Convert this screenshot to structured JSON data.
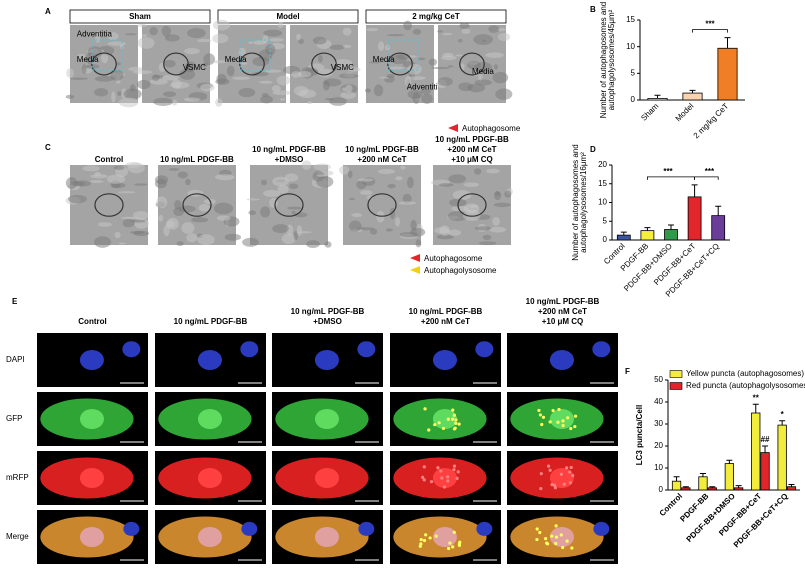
{
  "panel_labels": [
    "A",
    "B",
    "C",
    "D",
    "E",
    "F"
  ],
  "panel_a": {
    "groups": [
      "Sham",
      "Model",
      "2 mg/kg CeT"
    ],
    "image_labels": [
      "Adventitia",
      "Media",
      "VSMC",
      "Media",
      "VSMC",
      "Media",
      "Adventitia",
      "Media",
      "VSMC"
    ],
    "legend": "Autophagosome"
  },
  "panel_c": {
    "conditions": [
      [
        "Control"
      ],
      [
        "10 ng/mL PDGF-BB"
      ],
      [
        "10 ng/mL PDGF-BB",
        "+DMSO"
      ],
      [
        "10 ng/mL PDGF-BB",
        "+200 nM CeT"
      ],
      [
        "10 ng/mL PDGF-BB",
        "+200 nM CeT",
        "+10 μM CQ"
      ]
    ],
    "legend": [
      "Autophagosome",
      "Autophagolysosome"
    ]
  },
  "panel_e": {
    "conditions": [
      [
        "Control"
      ],
      [
        "10 ng/mL PDGF-BB"
      ],
      [
        "10 ng/mL PDGF-BB",
        "+DMSO"
      ],
      [
        "10 ng/mL PDGF-BB",
        "+200 nM CeT"
      ],
      [
        "10 ng/mL PDGF-BB",
        "+200 nM CeT",
        "+10 μM CQ"
      ]
    ],
    "channels": [
      "DAPI",
      "GFP",
      "mRFP",
      "Merge"
    ]
  },
  "chart_data": [
    {
      "type": "bar",
      "ylabel": [
        "Number of autophagosomes and",
        "autophagolysosomes/45μm²"
      ],
      "categories": [
        "Sham",
        "Model",
        "2 mg/kg CeT"
      ],
      "values": [
        0.3,
        1.3,
        9.7
      ],
      "errors": [
        0.6,
        0.5,
        2.0
      ],
      "colors": [
        "#ffffff",
        "#fbd3b0",
        "#f07e26"
      ],
      "ylim": [
        0,
        15
      ],
      "yticks": [
        0,
        5,
        10,
        15
      ],
      "annotations": [
        {
          "text": "***"
        }
      ]
    },
    {
      "type": "bar",
      "ylabel": [
        "Number of autophagosomes and",
        "autophagolysosomes/16μm²"
      ],
      "categories": [
        "Control",
        "PDGF-BB",
        "PDGF-BB+DMSO",
        "PDGF-BB+CeT",
        "PDGF-BB+CeT+CQ"
      ],
      "values": [
        1.3,
        2.5,
        2.8,
        11.5,
        6.5
      ],
      "errors": [
        0.8,
        0.8,
        1.2,
        3.2,
        2.5
      ],
      "colors": [
        "#3a53a4",
        "#f5ee3a",
        "#2e9b4a",
        "#e3262b",
        "#6a3d98"
      ],
      "ylim": [
        0,
        20
      ],
      "yticks": [
        0,
        5,
        10,
        15,
        20
      ],
      "annotations": [
        {
          "text": "***"
        },
        {
          "text": "***"
        }
      ]
    },
    {
      "type": "grouped-bar",
      "ylabel": [
        "LC3 puncta/Cell"
      ],
      "categories": [
        "Control",
        "PDGF-BB",
        "PDGF-BB+DMSO",
        "PDGF-BB+CeT",
        "PDGF-BB+CeT+CQ"
      ],
      "series": [
        {
          "name": "Yellow puncta (autophagosomes)",
          "color": "#f2ec3c",
          "values": [
            4,
            6,
            12,
            35,
            29.5
          ],
          "errors": [
            2,
            1.5,
            1.5,
            4,
            2
          ]
        },
        {
          "name": "Red puncta (autophagolysosomes)",
          "color": "#e0262b",
          "values": [
            1,
            1,
            1,
            17,
            1.5
          ],
          "errors": [
            0.5,
            0.5,
            1,
            3,
            1
          ]
        }
      ],
      "ylim": [
        0,
        50
      ],
      "yticks": [
        0,
        10,
        20,
        30,
        40,
        50
      ],
      "annotations": [
        {
          "text": "**"
        },
        {
          "text": "##"
        },
        {
          "text": "*"
        }
      ]
    }
  ]
}
